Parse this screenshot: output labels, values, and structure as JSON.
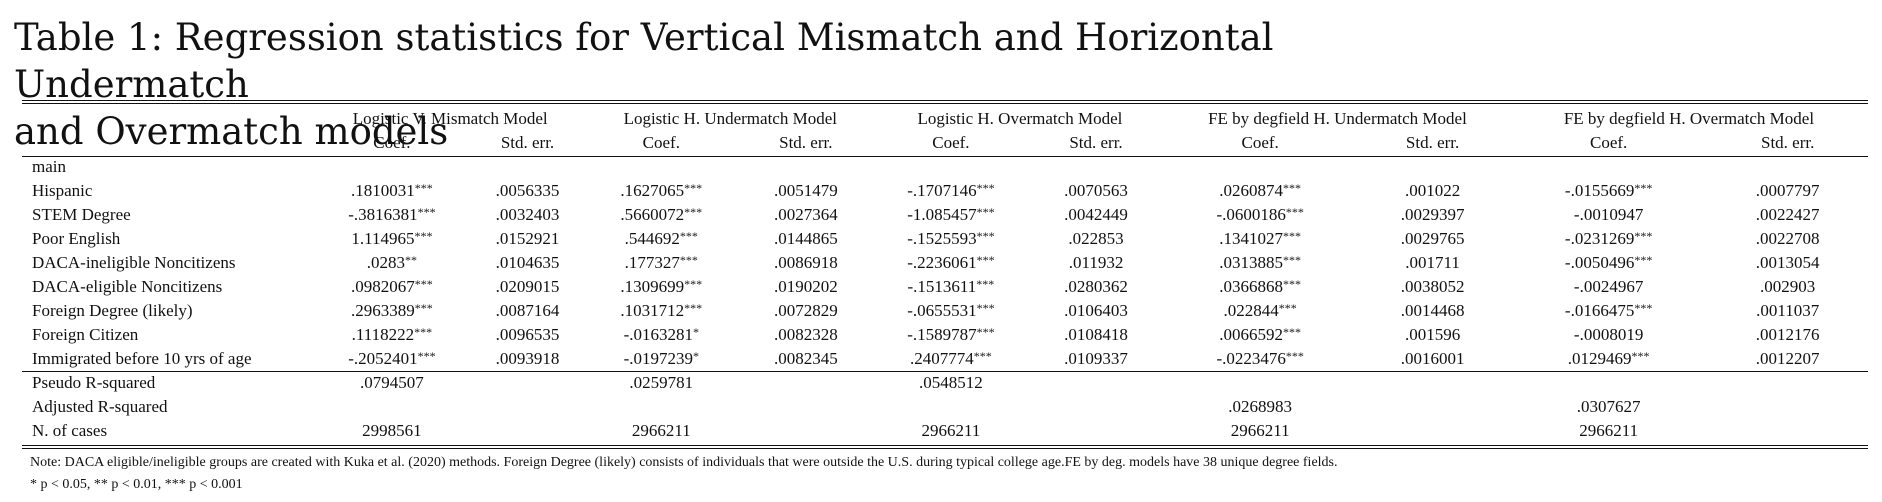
{
  "title_line1": "Table 1:  Regression statistics for Vertical Mismatch and Horizontal Undermatch",
  "title_line2": "and Overmatch models",
  "models": [
    "Logistic V. Mismatch Model",
    "Logistic H. Undermatch Model",
    "Logistic H. Overmatch Model",
    "FE by degfield H. Undermatch Model",
    "FE by degfield H. Overmatch Model"
  ],
  "subheaders": [
    "Coef.",
    "Std. err."
  ],
  "group_label": "main",
  "rows": [
    {
      "label": "Hispanic",
      "cells": [
        ".1810031***",
        ".0056335",
        ".1627065***",
        ".0051479",
        "-.1707146***",
        ".0070563",
        ".0260874***",
        ".001022",
        "-.0155669***",
        ".0007797"
      ]
    },
    {
      "label": "STEM Degree",
      "cells": [
        "-.3816381***",
        ".0032403",
        ".5660072***",
        ".0027364",
        "-1.085457***",
        ".0042449",
        "-.0600186***",
        ".0029397",
        "-.0010947",
        ".0022427"
      ]
    },
    {
      "label": "Poor English",
      "cells": [
        "1.114965***",
        ".0152921",
        ".544692***",
        ".0144865",
        "-.1525593***",
        ".022853",
        ".1341027***",
        ".0029765",
        "-.0231269***",
        ".0022708"
      ]
    },
    {
      "label": "DACA-ineligible Noncitizens",
      "cells": [
        ".0283**",
        ".0104635",
        ".177327***",
        ".0086918",
        "-.2236061***",
        ".011932",
        ".0313885***",
        ".001711",
        "-.0050496***",
        ".0013054"
      ]
    },
    {
      "label": "DACA-eligible Noncitizens",
      "cells": [
        ".0982067***",
        ".0209015",
        ".1309699***",
        ".0190202",
        "-.1513611***",
        ".0280362",
        ".0366868***",
        ".0038052",
        "-.0024967",
        ".002903"
      ]
    },
    {
      "label": "Foreign Degree (likely)",
      "cells": [
        ".2963389***",
        ".0087164",
        ".1031712***",
        ".0072829",
        "-.0655531***",
        ".0106403",
        ".022844***",
        ".0014468",
        "-.0166475***",
        ".0011037"
      ]
    },
    {
      "label": "Foreign Citizen",
      "cells": [
        ".1118222***",
        ".0096535",
        "-.0163281*",
        ".0082328",
        "-.1589787***",
        ".0108418",
        ".0066592***",
        ".001596",
        "-.0008019",
        ".0012176"
      ]
    },
    {
      "label": "Immigrated before 10 yrs of age",
      "cells": [
        "-.2052401***",
        ".0093918",
        "-.0197239*",
        ".0082345",
        ".2407774***",
        ".0109337",
        "-.0223476***",
        ".0016001",
        ".0129469***",
        ".0012207"
      ]
    }
  ],
  "stats": [
    {
      "label": "Pseudo R-squared",
      "cells": [
        ".0794507",
        "",
        ".0259781",
        "",
        ".0548512",
        "",
        "",
        "",
        "",
        ""
      ]
    },
    {
      "label": "Adjusted R-squared",
      "cells": [
        "",
        "",
        "",
        "",
        "",
        "",
        ".0268983",
        "",
        ".0307627",
        ""
      ]
    },
    {
      "label": "N. of cases",
      "cells": [
        "2998561",
        "",
        "2966211",
        "",
        "2966211",
        "",
        "2966211",
        "",
        "2966211",
        ""
      ]
    }
  ],
  "note_text": "Note: DACA eligible/ineligible groups are created with Kuka et al. (2020) methods. Foreign Degree (likely) consists of individuals that were outside the U.S. during typical college age.FE by deg. models have 38 unique degree fields.",
  "significance_text": "* p < 0.05, ** p < 0.01, *** p < 0.001"
}
